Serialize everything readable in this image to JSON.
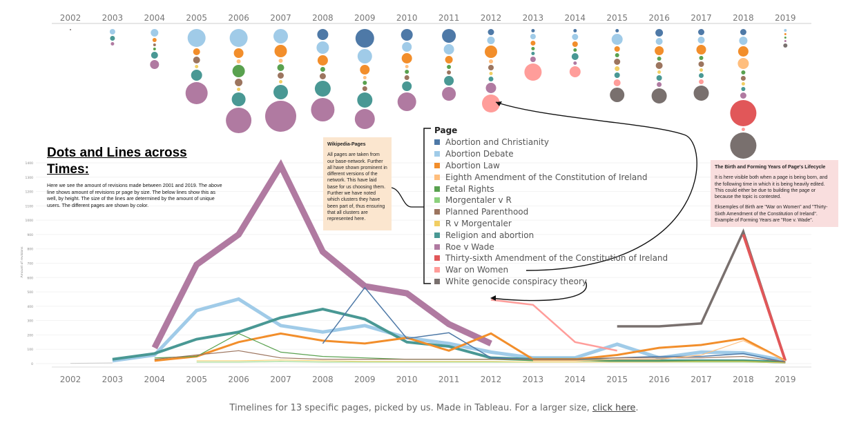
{
  "years": [
    "2002",
    "2003",
    "2004",
    "2005",
    "2006",
    "2007",
    "2008",
    "2009",
    "2010",
    "2011",
    "2012",
    "2013",
    "2014",
    "2015",
    "2016",
    "2017",
    "2018",
    "2019"
  ],
  "title": "Dots and Lines across Times:",
  "description": "Here we see the amount of revisions made between 2001 and 2019. The above line shows amount of revisions pr page by size. The below lines show this as well, by height. The size of the lines are determined by the amount of unique users. The different pages are shown by color.",
  "wiki_note": {
    "heading": "Wikipedia-Pages",
    "body": "All pages are taken from our base-network. Further all have shown prominent in different versions of the network. This have laid base for us choosing them. Further we have noted which clusters they have been part of, thus ensuring that all clusters are represented here."
  },
  "birth_note": {
    "heading": "The Birth and Forming Years of Page's Lifecycle",
    "p1": "It is here visible both when a page is being born, and the following time in which it is being heavily edited. This could either be due to building the page or because the topic is contested.",
    "p2": "Eksemples of Birth are \"War on Women\" and \"Thirty-Sixth Amendment of the Constitution of Ireland\". Example of Forming Years are \"Roe v. Wade\"."
  },
  "legend": {
    "title": "Page",
    "items": [
      {
        "label": "Abortion and Christianity",
        "color": "#4e79a7"
      },
      {
        "label": "Abortion Debate",
        "color": "#a0cbe8"
      },
      {
        "label": "Abortion Law",
        "color": "#f28e2b"
      },
      {
        "label": "Eighth Amendment of the Constitution of Ireland",
        "color": "#ffbe7d"
      },
      {
        "label": "Fetal Rights",
        "color": "#59a14f"
      },
      {
        "label": "Morgentaler v R",
        "color": "#8cd17d"
      },
      {
        "label": "Planned Parenthood",
        "color": "#9c755f"
      },
      {
        "label": "R v Morgentaler",
        "color": "#f1ce63"
      },
      {
        "label": "Religion and abortion",
        "color": "#499894"
      },
      {
        "label": "Roe v Wade",
        "color": "#b07aa1"
      },
      {
        "label": "Thirty-sixth Amendment of the Constitution of Ireland",
        "color": "#e15759"
      },
      {
        "label": "War on Women",
        "color": "#ff9d9a"
      },
      {
        "label": "White genocide conspiracy theory",
        "color": "#79706e"
      }
    ]
  },
  "caption": {
    "text": "Timelines for 13 specific pages, picked by us. Made in Tableau. For a larger size,",
    "link": "click here",
    "end": "."
  },
  "chart_data": {
    "type": "line",
    "x": [
      "2002",
      "2003",
      "2004",
      "2005",
      "2006",
      "2007",
      "2008",
      "2009",
      "2010",
      "2011",
      "2012",
      "2013",
      "2014",
      "2015",
      "2016",
      "2017",
      "2018",
      "2019"
    ],
    "ylabel": "Amount of revisions",
    "yticks": [
      0,
      100,
      200,
      300,
      400,
      500,
      600,
      700,
      800,
      900,
      1000,
      1100,
      1200,
      1300,
      1400
    ],
    "ylim": [
      0,
      1430
    ],
    "grid": true,
    "series": [
      {
        "name": "Roe v Wade",
        "color": "#b07aa1",
        "width": 9,
        "values": [
          null,
          null,
          110,
          690,
          900,
          1380,
          780,
          540,
          490,
          275,
          140,
          null,
          null,
          null,
          null,
          null,
          null,
          null
        ]
      },
      {
        "name": "Abortion Debate",
        "color": "#a0cbe8",
        "width": 5,
        "values": [
          null,
          20,
          60,
          370,
          450,
          265,
          220,
          265,
          180,
          140,
          80,
          40,
          40,
          135,
          40,
          80,
          75,
          20
        ]
      },
      {
        "name": "Religion and abortion",
        "color": "#499894",
        "width": 4,
        "values": [
          null,
          30,
          70,
          170,
          220,
          320,
          380,
          310,
          150,
          120,
          40,
          30,
          30,
          20,
          20,
          20,
          20,
          10
        ]
      },
      {
        "name": "Abortion Law",
        "color": "#f28e2b",
        "width": 3,
        "values": [
          null,
          null,
          20,
          50,
          150,
          210,
          160,
          140,
          180,
          90,
          210,
          30,
          30,
          60,
          110,
          130,
          175,
          20
        ]
      },
      {
        "name": "Abortion and Christianity",
        "color": "#4e79a7",
        "width": 1.5,
        "values": [
          null,
          null,
          null,
          null,
          null,
          null,
          140,
          530,
          175,
          215,
          40,
          30,
          30,
          40,
          50,
          50,
          70,
          10
        ]
      },
      {
        "name": "War on Women",
        "color": "#ff9d9a",
        "width": 2.5,
        "values": [
          null,
          null,
          null,
          null,
          null,
          null,
          null,
          null,
          null,
          null,
          445,
          410,
          150,
          90,
          null,
          null,
          null,
          null
        ]
      },
      {
        "name": "White genocide conspiracy theory",
        "color": "#79706e",
        "width": 3.5,
        "values": [
          null,
          null,
          null,
          null,
          null,
          null,
          null,
          null,
          null,
          null,
          null,
          null,
          null,
          260,
          260,
          280,
          920,
          20
        ]
      },
      {
        "name": "Thirty-sixth Amendment of the Constitution of Ireland",
        "color": "#e15759",
        "width": 4,
        "values": [
          null,
          null,
          null,
          null,
          null,
          null,
          null,
          null,
          null,
          null,
          null,
          null,
          null,
          null,
          null,
          null,
          900,
          20
        ]
      },
      {
        "name": "Fetal Rights",
        "color": "#59a14f",
        "width": 1.2,
        "values": [
          null,
          null,
          40,
          50,
          210,
          80,
          50,
          40,
          30,
          30,
          30,
          20,
          20,
          20,
          20,
          20,
          20,
          10
        ]
      },
      {
        "name": "Planned Parenthood",
        "color": "#9c755f",
        "width": 1.2,
        "values": [
          null,
          null,
          30,
          60,
          90,
          40,
          30,
          30,
          30,
          30,
          30,
          30,
          30,
          40,
          40,
          40,
          50,
          10
        ]
      },
      {
        "name": "Eighth Amendment of the Constitution of Ireland",
        "color": "#ffbe7d",
        "width": 1.2,
        "values": [
          null,
          null,
          null,
          null,
          null,
          null,
          null,
          null,
          null,
          null,
          null,
          20,
          20,
          30,
          30,
          60,
          160,
          20
        ]
      },
      {
        "name": "Morgentaler v R",
        "color": "#8cd17d",
        "width": 1,
        "values": [
          null,
          null,
          null,
          10,
          10,
          15,
          10,
          10,
          10,
          10,
          10,
          10,
          10,
          10,
          10,
          10,
          10,
          5
        ]
      },
      {
        "name": "R v Morgentaler",
        "color": "#f1ce63",
        "width": 1,
        "values": [
          null,
          null,
          null,
          20,
          20,
          25,
          20,
          15,
          15,
          15,
          15,
          10,
          10,
          10,
          10,
          15,
          15,
          5
        ]
      },
      {
        "name": "Gray base",
        "color": "#cccccc",
        "width": 1,
        "values": [
          2,
          5,
          null,
          null,
          null,
          null,
          null,
          null,
          null,
          null,
          null,
          null,
          null,
          null,
          null,
          null,
          null,
          null
        ]
      }
    ],
    "dots": [
      {
        "year": "2002",
        "items": [
          [
            "#79706e",
            2
          ]
        ]
      },
      {
        "year": "2003",
        "items": [
          [
            "#a0cbe8",
            8
          ],
          [
            "#499894",
            7
          ],
          [
            "#b07aa1",
            5
          ]
        ]
      },
      {
        "year": "2004",
        "items": [
          [
            "#a0cbe8",
            11
          ],
          [
            "#f28e2b",
            6
          ],
          [
            "#9c755f",
            4
          ],
          [
            "#59a14f",
            4
          ],
          [
            "#499894",
            10
          ],
          [
            "#b07aa1",
            13
          ]
        ]
      },
      {
        "year": "2005",
        "items": [
          [
            "#a0cbe8",
            26
          ],
          [
            "#f28e2b",
            10
          ],
          [
            "#9c755f",
            10
          ],
          [
            "#f1ce63",
            5
          ],
          [
            "#499894",
            16
          ],
          [
            "#b07aa1",
            32
          ]
        ]
      },
      {
        "year": "2006",
        "items": [
          [
            "#a0cbe8",
            26
          ],
          [
            "#f28e2b",
            14
          ],
          [
            "#ffbe7d",
            6
          ],
          [
            "#59a14f",
            18
          ],
          [
            "#9c755f",
            11
          ],
          [
            "#f1ce63",
            5
          ],
          [
            "#499894",
            20
          ],
          [
            "#b07aa1",
            37
          ]
        ]
      },
      {
        "year": "2007",
        "items": [
          [
            "#a0cbe8",
            21
          ],
          [
            "#f28e2b",
            18
          ],
          [
            "#ffbe7d",
            6
          ],
          [
            "#59a14f",
            10
          ],
          [
            "#9c755f",
            9
          ],
          [
            "#f1ce63",
            5
          ],
          [
            "#499894",
            21
          ],
          [
            "#b07aa1",
            45
          ]
        ]
      },
      {
        "year": "2008",
        "items": [
          [
            "#4e79a7",
            16
          ],
          [
            "#a0cbe8",
            18
          ],
          [
            "#f28e2b",
            15
          ],
          [
            "#59a14f",
            7
          ],
          [
            "#9c755f",
            9
          ],
          [
            "#499894",
            23
          ],
          [
            "#b07aa1",
            34
          ]
        ]
      },
      {
        "year": "2009",
        "items": [
          [
            "#4e79a7",
            27
          ],
          [
            "#a0cbe8",
            21
          ],
          [
            "#f28e2b",
            14
          ],
          [
            "#ffbe7d",
            5
          ],
          [
            "#59a14f",
            6
          ],
          [
            "#9c755f",
            7
          ],
          [
            "#499894",
            22
          ],
          [
            "#b07aa1",
            29
          ]
        ]
      },
      {
        "year": "2010",
        "items": [
          [
            "#4e79a7",
            17
          ],
          [
            "#a0cbe8",
            14
          ],
          [
            "#f28e2b",
            15
          ],
          [
            "#ffbe7d",
            5
          ],
          [
            "#59a14f",
            6
          ],
          [
            "#9c755f",
            7
          ],
          [
            "#499894",
            14
          ],
          [
            "#b07aa1",
            27
          ]
        ]
      },
      {
        "year": "2011",
        "items": [
          [
            "#4e79a7",
            20
          ],
          [
            "#a0cbe8",
            15
          ],
          [
            "#f28e2b",
            11
          ],
          [
            "#59a14f",
            6
          ],
          [
            "#9c755f",
            6
          ],
          [
            "#499894",
            14
          ],
          [
            "#b07aa1",
            20
          ]
        ]
      },
      {
        "year": "2012",
        "items": [
          [
            "#4e79a7",
            9
          ],
          [
            "#a0cbe8",
            11
          ],
          [
            "#f28e2b",
            18
          ],
          [
            "#ffbe7d",
            6
          ],
          [
            "#9c755f",
            8
          ],
          [
            "#f1ce63",
            5
          ],
          [
            "#499894",
            7
          ],
          [
            "#b07aa1",
            15
          ],
          [
            "#ff9d9a",
            26
          ]
        ]
      },
      {
        "year": "2013",
        "items": [
          [
            "#4e79a7",
            5
          ],
          [
            "#a0cbe8",
            8
          ],
          [
            "#f28e2b",
            7
          ],
          [
            "#59a14f",
            5
          ],
          [
            "#499894",
            5
          ],
          [
            "#b07aa1",
            8
          ],
          [
            "#ff9d9a",
            25
          ]
        ]
      },
      {
        "year": "2014",
        "items": [
          [
            "#4e79a7",
            5
          ],
          [
            "#a0cbe8",
            9
          ],
          [
            "#f28e2b",
            8
          ],
          [
            "#59a14f",
            5
          ],
          [
            "#499894",
            10
          ],
          [
            "#b07aa1",
            5
          ],
          [
            "#ff9d9a",
            16
          ]
        ]
      },
      {
        "year": "2015",
        "items": [
          [
            "#4e79a7",
            5
          ],
          [
            "#a0cbe8",
            16
          ],
          [
            "#f28e2b",
            8
          ],
          [
            "#59a14f",
            6
          ],
          [
            "#9c755f",
            9
          ],
          [
            "#f1ce63",
            7
          ],
          [
            "#499894",
            8
          ],
          [
            "#ff9d9a",
            10
          ],
          [
            "#79706e",
            21
          ]
        ]
      },
      {
        "year": "2016",
        "items": [
          [
            "#4e79a7",
            11
          ],
          [
            "#a0cbe8",
            10
          ],
          [
            "#f28e2b",
            13
          ],
          [
            "#59a14f",
            6
          ],
          [
            "#9c755f",
            10
          ],
          [
            "#f1ce63",
            5
          ],
          [
            "#499894",
            8
          ],
          [
            "#b07aa1",
            7
          ],
          [
            "#79706e",
            22
          ]
        ]
      },
      {
        "year": "2017",
        "items": [
          [
            "#4e79a7",
            9
          ],
          [
            "#a0cbe8",
            10
          ],
          [
            "#f28e2b",
            14
          ],
          [
            "#59a14f",
            6
          ],
          [
            "#9c755f",
            8
          ],
          [
            "#f1ce63",
            5
          ],
          [
            "#499894",
            7
          ],
          [
            "#ff9d9a",
            7
          ],
          [
            "#79706e",
            22
          ]
        ]
      },
      {
        "year": "2018",
        "items": [
          [
            "#4e79a7",
            9
          ],
          [
            "#a0cbe8",
            12
          ],
          [
            "#f28e2b",
            15
          ],
          [
            "#ffbe7d",
            16
          ],
          [
            "#59a14f",
            6
          ],
          [
            "#9c755f",
            7
          ],
          [
            "#f1ce63",
            5
          ],
          [
            "#499894",
            6
          ],
          [
            "#b07aa1",
            9
          ],
          [
            "#e15759",
            38
          ],
          [
            "#ff9d9a",
            5
          ],
          [
            "#79706e",
            38
          ]
        ]
      },
      {
        "year": "2019",
        "items": [
          [
            "#a0cbe8",
            4
          ],
          [
            "#f28e2b",
            3
          ],
          [
            "#59a14f",
            3
          ],
          [
            "#b07aa1",
            3
          ],
          [
            "#79706e",
            6
          ]
        ]
      }
    ]
  }
}
